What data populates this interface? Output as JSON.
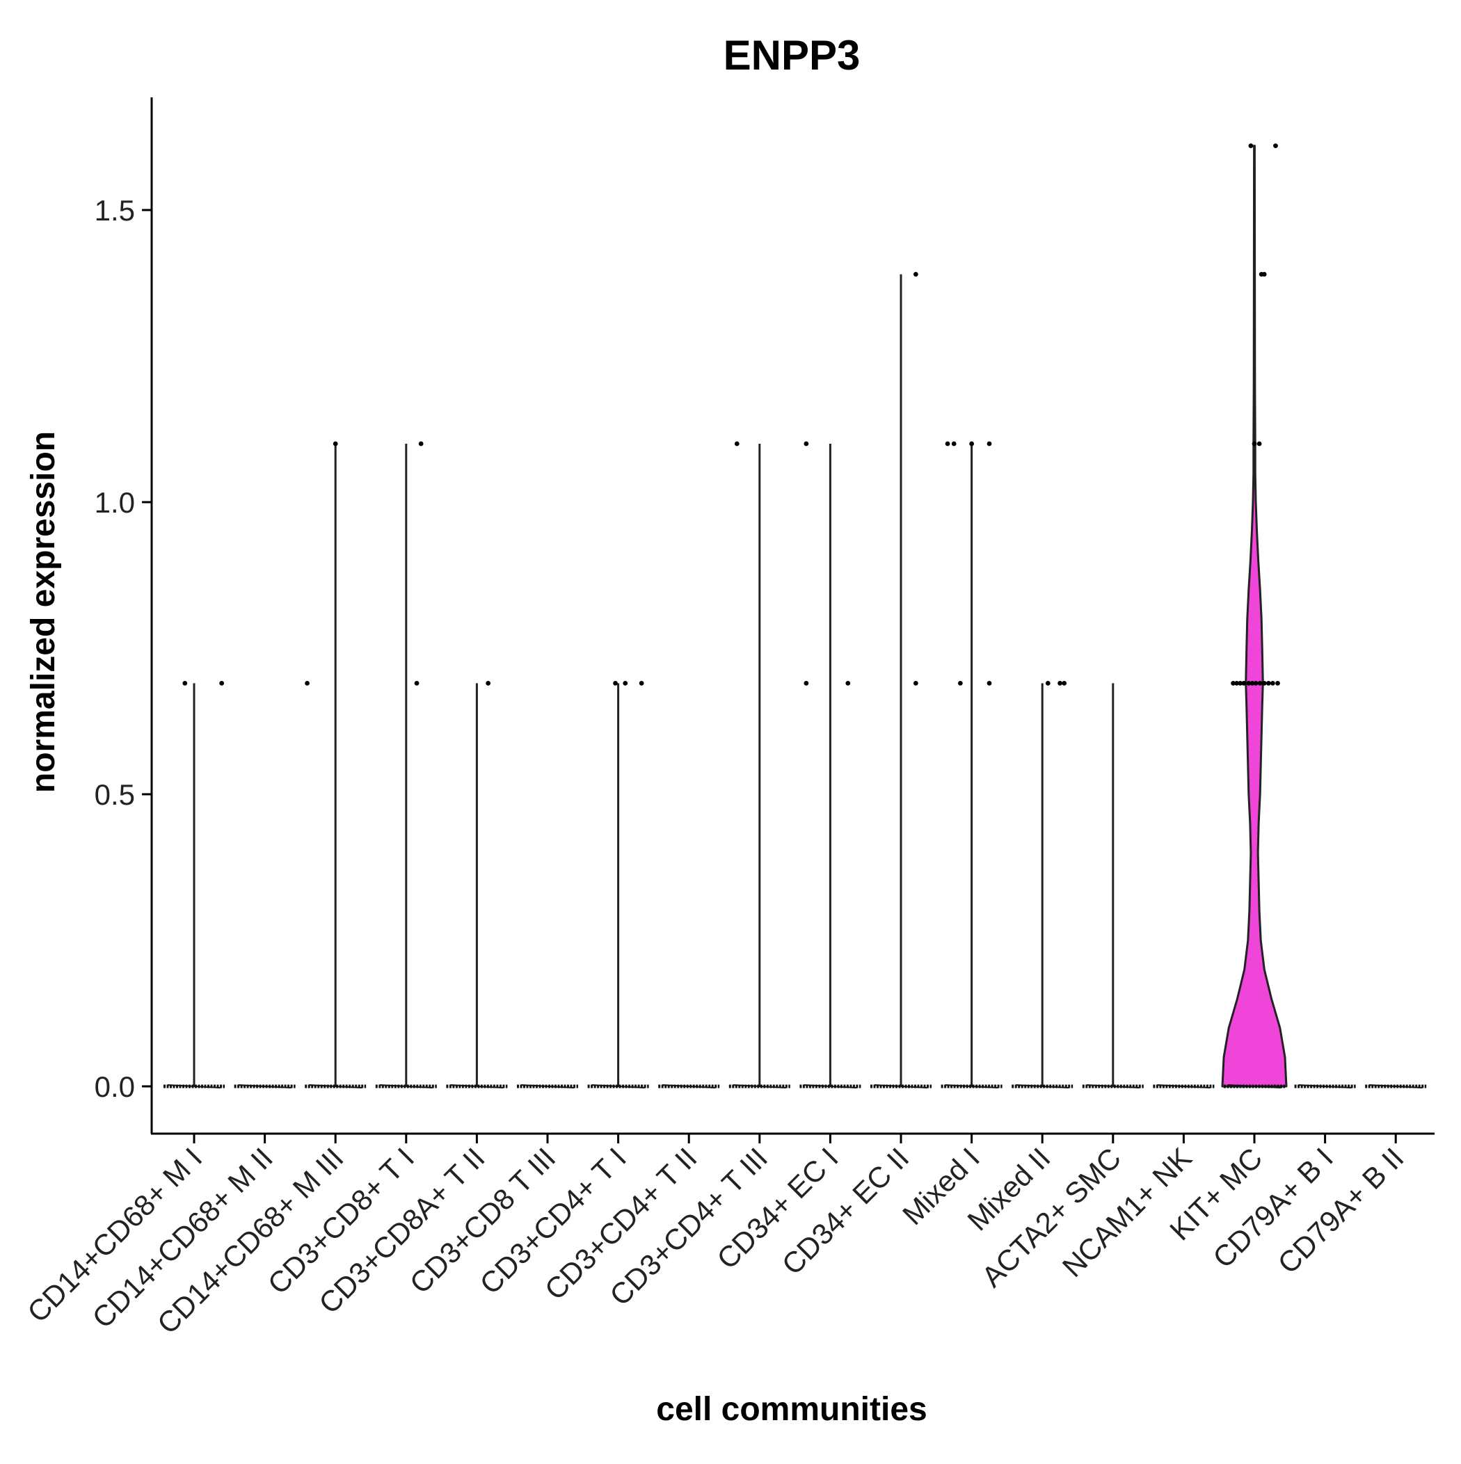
{
  "chart_data": {
    "type": "violin",
    "title": "ENPP3",
    "xlabel": "cell communities",
    "ylabel": "normalized expression",
    "ylim": [
      -0.08,
      1.68
    ],
    "yticks": [
      0.0,
      0.5,
      1.0,
      1.5
    ],
    "ytick_labels": [
      "0.0",
      "0.5",
      "1.0",
      "1.5"
    ],
    "grid": false,
    "legend": "none",
    "colors": {
      "violin_fill": "#ef45d9",
      "stroke": "#222222",
      "point": "#000000"
    },
    "categories": [
      "CD14+CD68+ M I",
      "CD14+CD68+ M II",
      "CD14+CD68+ M III",
      "CD3+CD8+ T I",
      "CD3+CD8A+ T II",
      "CD3+CD8 T III",
      "CD3+CD4+ T I",
      "CD3+CD4+ T II",
      "CD3+CD4+ T III",
      "CD34+ EC I",
      "CD34+ EC II",
      "Mixed I",
      "Mixed II",
      "ACTA2+ SMC",
      "NCAM1+ NK",
      "KIT+ MC",
      "CD79A+ B I",
      "CD79A+ B II"
    ],
    "max_values": [
      0.69,
      0,
      1.1,
      1.1,
      0.69,
      0,
      0.69,
      0,
      1.1,
      1.1,
      1.39,
      1.1,
      0.69,
      0.69,
      0,
      1.61,
      0,
      0
    ],
    "outlier_points": [
      [
        {
          "dx": -0.13,
          "y": 0.69
        },
        {
          "dx": 0.39,
          "y": 0.69
        }
      ],
      [],
      [
        {
          "dx": -0.4,
          "y": 0.69
        },
        {
          "dx": 0.0,
          "y": 1.1
        }
      ],
      [
        {
          "dx": 0.21,
          "y": 1.1
        },
        {
          "dx": 0.15,
          "y": 0.69
        }
      ],
      [
        {
          "dx": 0.16,
          "y": 0.69
        }
      ],
      [],
      [
        {
          "dx": -0.04,
          "y": 0.69
        },
        {
          "dx": 0.1,
          "y": 0.69
        },
        {
          "dx": 0.33,
          "y": 0.69
        }
      ],
      [],
      [
        {
          "dx": -0.32,
          "y": 1.1
        }
      ],
      [
        {
          "dx": -0.34,
          "y": 1.1
        },
        {
          "dx": -0.34,
          "y": 0.69
        },
        {
          "dx": 0.25,
          "y": 0.69
        }
      ],
      [
        {
          "dx": 0.21,
          "y": 1.39
        },
        {
          "dx": 0.21,
          "y": 0.69
        }
      ],
      [
        {
          "dx": -0.34,
          "y": 1.1
        },
        {
          "dx": -0.25,
          "y": 1.1
        },
        {
          "dx": 0.0,
          "y": 1.1
        },
        {
          "dx": 0.25,
          "y": 1.1
        },
        {
          "dx": -0.16,
          "y": 0.69
        },
        {
          "dx": 0.25,
          "y": 0.69
        }
      ],
      [
        {
          "dx": 0.08,
          "y": 0.69
        },
        {
          "dx": 0.25,
          "y": 0.69
        },
        {
          "dx": 0.31,
          "y": 0.69
        }
      ],
      [],
      [],
      [
        {
          "dx": -0.05,
          "y": 1.61
        },
        {
          "dx": 0.3,
          "y": 1.61
        },
        {
          "dx": 0.1,
          "y": 1.39
        },
        {
          "dx": 0.14,
          "y": 1.39
        },
        {
          "dx": 0.0,
          "y": 1.1
        },
        {
          "dx": 0.07,
          "y": 1.1
        },
        {
          "dx": -0.3,
          "y": 0.69
        },
        {
          "dx": -0.25,
          "y": 0.69
        },
        {
          "dx": -0.2,
          "y": 0.69
        },
        {
          "dx": -0.15,
          "y": 0.69
        },
        {
          "dx": -0.08,
          "y": 0.69
        },
        {
          "dx": -0.03,
          "y": 0.69
        },
        {
          "dx": 0.02,
          "y": 0.69
        },
        {
          "dx": 0.08,
          "y": 0.69
        },
        {
          "dx": 0.14,
          "y": 0.69
        },
        {
          "dx": 0.2,
          "y": 0.69
        },
        {
          "dx": 0.26,
          "y": 0.69
        },
        {
          "dx": 0.33,
          "y": 0.69
        }
      ],
      [],
      []
    ],
    "violin_density": {
      "category": "KIT+ MC",
      "profile": [
        {
          "y": 0.0,
          "w": 0.45
        },
        {
          "y": 0.05,
          "w": 0.43
        },
        {
          "y": 0.1,
          "w": 0.36
        },
        {
          "y": 0.15,
          "w": 0.24
        },
        {
          "y": 0.2,
          "w": 0.14
        },
        {
          "y": 0.25,
          "w": 0.09
        },
        {
          "y": 0.3,
          "w": 0.07
        },
        {
          "y": 0.35,
          "w": 0.06
        },
        {
          "y": 0.4,
          "w": 0.05
        },
        {
          "y": 0.45,
          "w": 0.06
        },
        {
          "y": 0.5,
          "w": 0.08
        },
        {
          "y": 0.55,
          "w": 0.09
        },
        {
          "y": 0.6,
          "w": 0.1
        },
        {
          "y": 0.65,
          "w": 0.11
        },
        {
          "y": 0.69,
          "w": 0.12
        },
        {
          "y": 0.75,
          "w": 0.11
        },
        {
          "y": 0.8,
          "w": 0.1
        },
        {
          "y": 0.85,
          "w": 0.08
        },
        {
          "y": 0.9,
          "w": 0.055
        },
        {
          "y": 0.95,
          "w": 0.035
        },
        {
          "y": 1.0,
          "w": 0.02
        },
        {
          "y": 1.05,
          "w": 0.012
        },
        {
          "y": 1.1,
          "w": 0.012
        },
        {
          "y": 1.2,
          "w": 0.008
        },
        {
          "y": 1.39,
          "w": 0.006
        },
        {
          "y": 1.5,
          "w": 0.005
        },
        {
          "y": 1.61,
          "w": 0.004
        }
      ]
    }
  }
}
